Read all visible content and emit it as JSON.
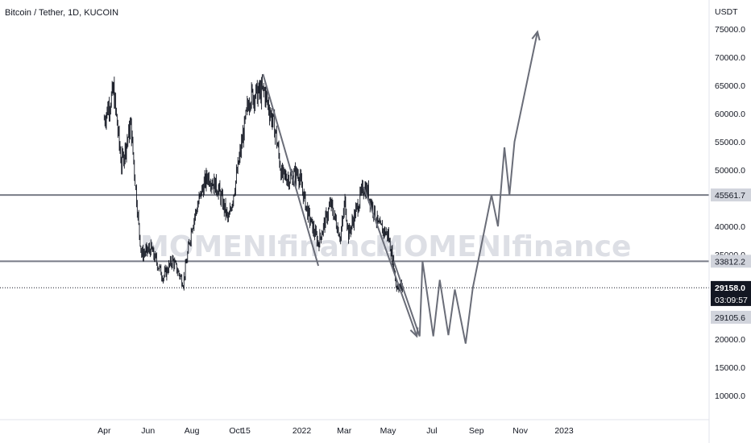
{
  "header": {
    "symbol_title": "Bitcoin / Tether, 1D, KUCOIN"
  },
  "watermark": "MOMENIfinance",
  "colors": {
    "candle": "#131722",
    "hline": "#787b86",
    "projection": "#6a6d78",
    "price_tag_bg": "#131722",
    "level_tag_bg": "#d1d4dc"
  },
  "chart_data": {
    "type": "candlestick",
    "title": "Bitcoin / Tether, 1D, KUCOIN",
    "y_axis": {
      "unit": "USDT",
      "scale": "linear",
      "ticks": [
        "75000.0",
        "70000.0",
        "65000.0",
        "60000.0",
        "55000.0",
        "50000.0",
        "40000.0",
        "35000.0",
        "20000.0",
        "15000.0",
        "10000.0"
      ],
      "ylim": [
        5000,
        76500
      ]
    },
    "x_axis": {
      "ticks": [
        "Apr",
        "Jun",
        "Aug",
        "Oct",
        "15",
        "2022",
        "Mar",
        "May",
        "Jul",
        "Sep",
        "Nov",
        "2023"
      ],
      "range": [
        "2021-03-15",
        "2023-02-05"
      ]
    },
    "price_samples": {
      "dates": [
        "2021-04-01",
        "2021-04-14",
        "2021-04-25",
        "2021-05-08",
        "2021-05-19",
        "2021-05-23",
        "2021-06-05",
        "2021-06-22",
        "2021-07-05",
        "2021-07-20",
        "2021-08-01",
        "2021-08-14",
        "2021-08-23",
        "2021-09-07",
        "2021-09-21",
        "2021-10-01",
        "2021-10-20",
        "2021-11-10",
        "2021-11-25",
        "2021-12-04",
        "2021-12-15",
        "2021-12-27",
        "2022-01-10",
        "2022-01-24",
        "2022-02-10",
        "2022-02-24",
        "2022-03-02",
        "2022-03-07",
        "2022-03-28",
        "2022-04-03",
        "2022-04-18",
        "2022-05-01",
        "2022-05-09",
        "2022-05-12",
        "2022-05-22"
      ],
      "close": [
        59000,
        64000,
        51000,
        58000,
        40000,
        35000,
        36000,
        31000,
        34000,
        30000,
        40000,
        46000,
        49000,
        46500,
        41000,
        48000,
        63000,
        64000,
        57000,
        49000,
        48500,
        49500,
        42000,
        37000,
        44000,
        38000,
        44500,
        38500,
        47000,
        46000,
        40000,
        38500,
        33000,
        29500,
        29200
      ]
    },
    "horizontal_levels": [
      {
        "value": 45561.7,
        "label": "45561.7"
      },
      {
        "value": 33812.2,
        "label": "33812.2"
      },
      {
        "value": 29105.6,
        "label": "29105.6"
      }
    ],
    "current_price": {
      "value": 29158.0,
      "label": "29158.0",
      "countdown": "03:09:57"
    },
    "trendlines": [
      {
        "from": [
          "2021-11-08",
          67000
        ],
        "to": [
          "2022-01-24",
          33000
        ]
      },
      {
        "from": [
          "2022-03-28",
          47000
        ],
        "to": [
          "2022-06-10",
          20500
        ]
      }
    ],
    "projection_path": {
      "dates": [
        "2022-05-09",
        "2022-06-14",
        "2022-06-18",
        "2022-07-03",
        "2022-07-12",
        "2022-07-24",
        "2022-08-02",
        "2022-08-17",
        "2022-08-27",
        "2022-09-22",
        "2022-10-01",
        "2022-10-10",
        "2022-10-17",
        "2022-10-24",
        "2022-11-25"
      ],
      "values": [
        33800,
        20500,
        33800,
        20500,
        30500,
        20700,
        28800,
        19200,
        29100,
        45561.7,
        40000,
        54000,
        45561.7,
        55000,
        74500
      ]
    }
  }
}
